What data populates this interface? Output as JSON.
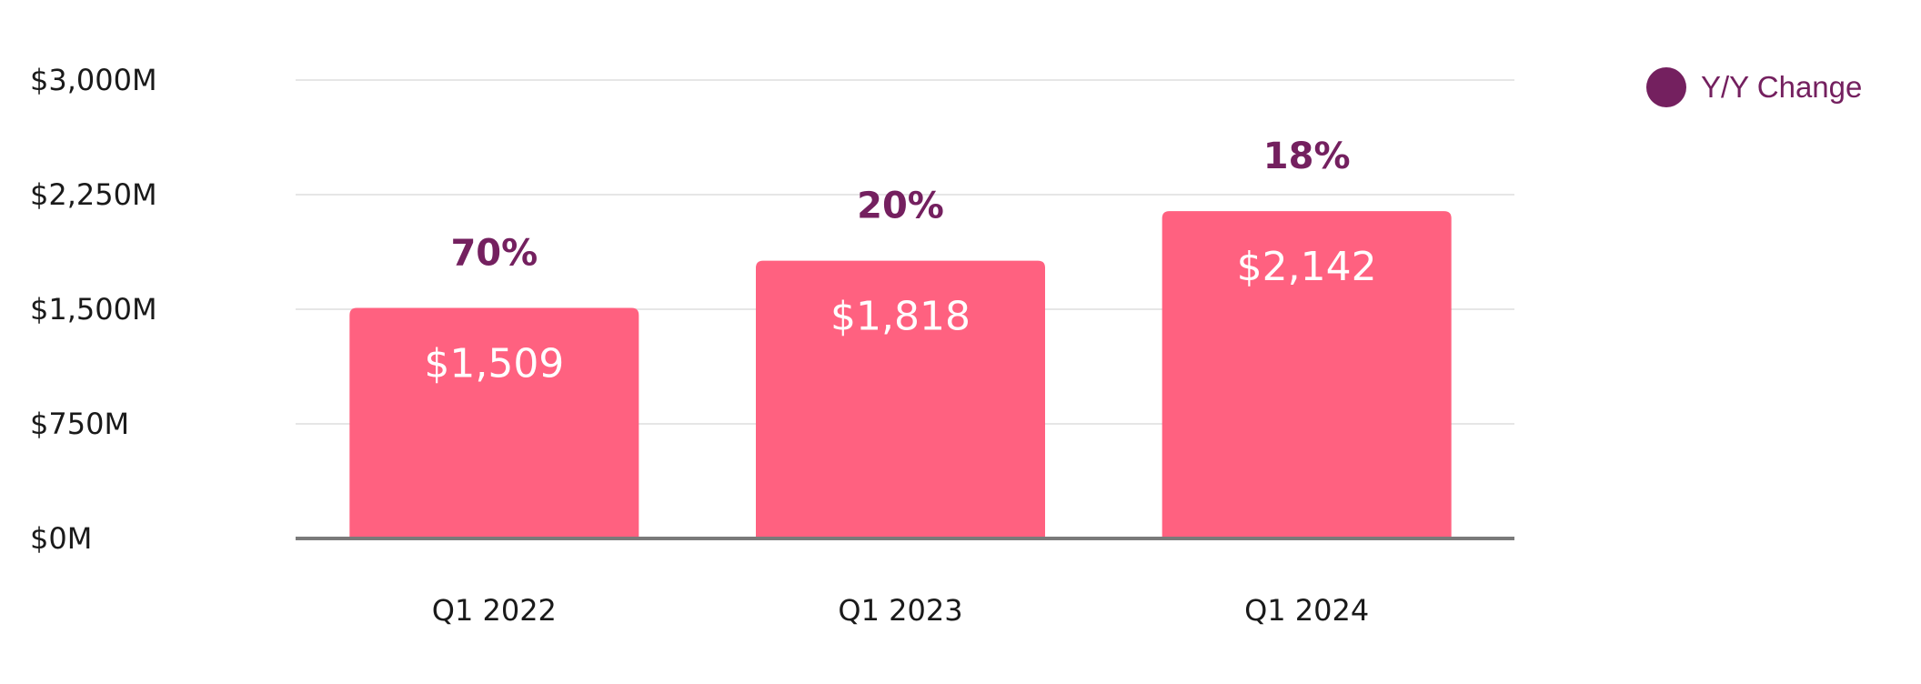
{
  "chart_data": {
    "type": "bar",
    "categories": [
      "Q1 2022",
      "Q1 2023",
      "Q1 2024"
    ],
    "values": [
      1509,
      1818,
      2142
    ],
    "value_labels": [
      "$1,509",
      "$1,818",
      "$2,142"
    ],
    "yoy_labels": [
      "70%",
      "20%",
      "18%"
    ],
    "yoy_values": [
      70,
      20,
      18
    ],
    "y_ticks": [
      {
        "value": 0,
        "label": "$0M"
      },
      {
        "value": 750,
        "label": "$750M"
      },
      {
        "value": 1500,
        "label": "$1,500M"
      },
      {
        "value": 2250,
        "label": "$2,250M"
      },
      {
        "value": 3000,
        "label": "$3,000M"
      }
    ],
    "ylim": [
      0,
      3000
    ],
    "grid": true,
    "legend": {
      "label": "Y/Y Change",
      "placement": "top-right"
    },
    "colors": {
      "bar": "#ff6180",
      "yoy": "#74205f",
      "grid": "#e6e6e6",
      "baseline": "#7a7a7a"
    }
  }
}
